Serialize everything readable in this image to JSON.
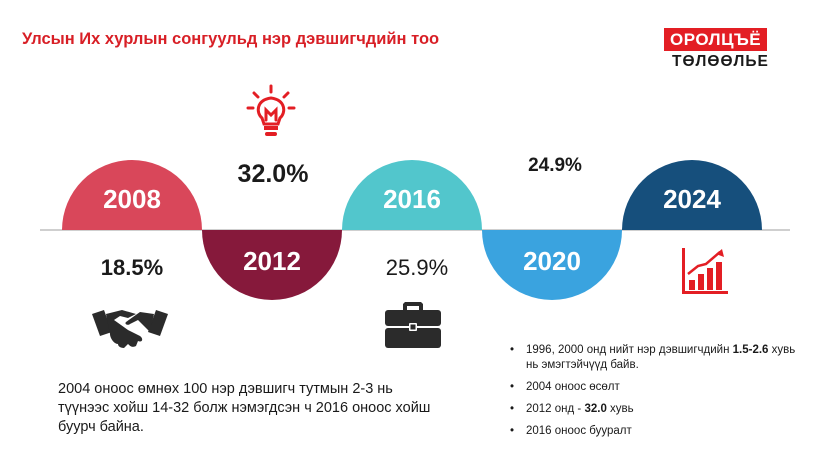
{
  "title": "Улсын Их хурлын сонгуульд нэр дэвшигчдийн тоо",
  "logo": {
    "top": "ОРОЛЦЪЁ",
    "bottom": "ТӨЛӨӨЛЬЕ"
  },
  "chart_data": {
    "type": "timeline",
    "categories": [
      "2008",
      "2012",
      "2016",
      "2020",
      "2024"
    ],
    "values": [
      18.5,
      32.0,
      25.9,
      24.9,
      null
    ],
    "value_labels": [
      "18.5%",
      "32.0%",
      "25.9%",
      "24.9%",
      ""
    ],
    "colors": [
      "#d9475a",
      "#86193b",
      "#52c6cc",
      "#3aa3df",
      "#164f7c"
    ]
  },
  "note": "2004 оноос өмнөх 100 нэр дэвшигч тутмын 2-3 нь түүнээс хойш 14-32 болж нэмэгдсэн ч 2016 оноос хойш буурч байна.",
  "bullets": [
    {
      "pre": "1996, 2000 онд нийт нэр дэвшигчдийн ",
      "bold": "1.5-2.6",
      "post": " хувь нь эмэгтэйчүүд байв."
    },
    {
      "pre": "2004 оноос өсөлт",
      "bold": "",
      "post": ""
    },
    {
      "pre": "2012 онд - ",
      "bold": "32.0",
      "post": " хувь"
    },
    {
      "pre": "2016 оноос бууралт",
      "bold": "",
      "post": ""
    }
  ],
  "icons": [
    "lightbulb-icon",
    "handshake-icon",
    "briefcase-icon",
    "growth-chart-icon"
  ]
}
